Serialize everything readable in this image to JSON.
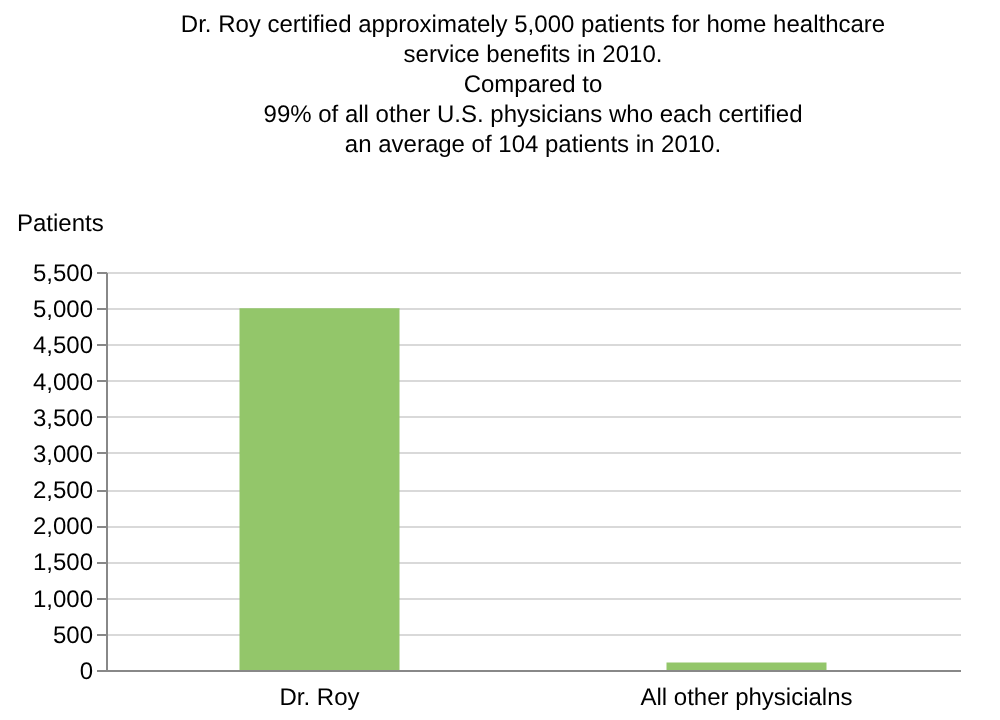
{
  "chart_data": {
    "type": "bar",
    "title": "Dr. Roy certified approximately 5,000 patients for home healthcare\nservice benefits in 2010.\nCompared to\n99% of all other U.S. physicians who each certified\nan average of 104 patients in 2010.",
    "ylabel": "Patients",
    "categories": [
      "Dr. Roy",
      "All other physicialns"
    ],
    "values": [
      5000,
      104
    ],
    "color": "#93c66a",
    "ylim": [
      0,
      5500
    ],
    "yticks": [
      0,
      500,
      {
        "value": 1000,
        "label": "1,000"
      },
      {
        "value": 1500,
        "label": "1,500"
      },
      {
        "value": 2000,
        "label": "2,000"
      },
      {
        "value": 2500,
        "label": "2,500"
      },
      {
        "value": 3000,
        "label": "3,000"
      },
      {
        "value": 3500,
        "label": "3,500"
      },
      {
        "value": 4000,
        "label": "4,000"
      },
      {
        "value": 4500,
        "label": "4,500"
      },
      {
        "value": 5000,
        "label": "5,000"
      },
      {
        "value": 5500,
        "label": "5,500"
      }
    ],
    "grid": "y"
  }
}
